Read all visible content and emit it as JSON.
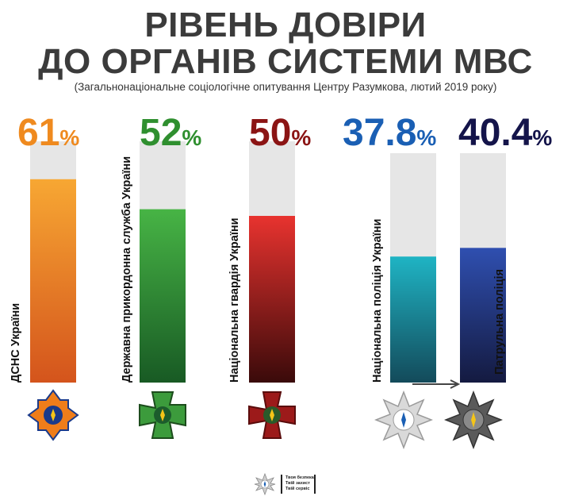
{
  "title_line1": "РІВЕНЬ ДОВІРИ",
  "title_line2": "ДО ОРГАНІВ СИСТЕМИ МВС",
  "subtitle": "(Загальнонаціональне соціологічне опитування Центру Разумкова, лютий 2019 року)",
  "footer": {
    "line1": "Твоя безпека",
    "line2": "Твій захист",
    "line3": "Твій сервіс"
  },
  "chart_data": {
    "type": "bar",
    "ylim": [
      0,
      100
    ],
    "categories": [
      "ДСНС України",
      "Державна прикордонна служба України",
      "Національна гвардія України",
      "Національна поліція України",
      "Патрульна поліція"
    ],
    "values": [
      61,
      52,
      50,
      37.8,
      40.4
    ],
    "value_labels": [
      "61",
      "52",
      "50",
      "37.8",
      "40.4"
    ],
    "unit": "%",
    "colors": [
      "#ef8a1f",
      "#2f8f2f",
      "#8b1414",
      "#1a5fb4",
      "#14144a"
    ],
    "bar_gradients": [
      [
        "#f7a733",
        "#d4541c"
      ],
      [
        "#47b445",
        "#185a24"
      ],
      [
        "#e8332f",
        "#3a0a0a"
      ],
      [
        "#1fb4c4",
        "#134a5a"
      ],
      [
        "#2f4fb0",
        "#141a40"
      ]
    ],
    "track_color": "#e6e6e6"
  }
}
